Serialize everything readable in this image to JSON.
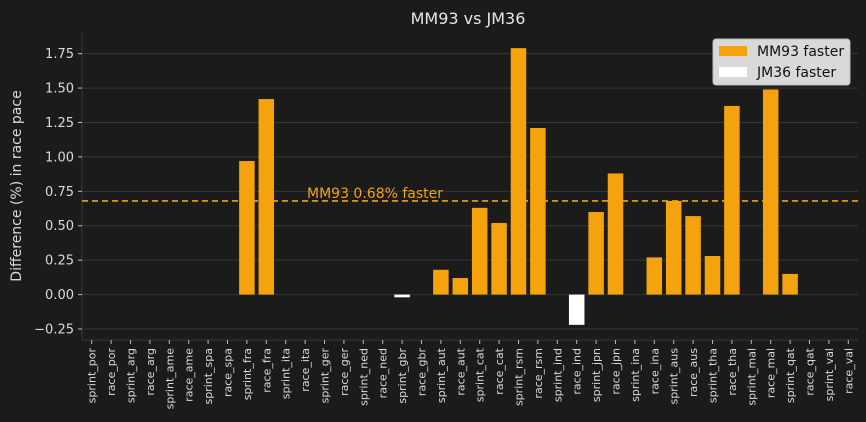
{
  "chart_data": {
    "type": "bar",
    "title": "MM93 vs JM36",
    "xlabel": "",
    "ylabel": "Difference (%) in race pace",
    "ylim": [
      -0.33,
      1.9
    ],
    "yticks": [
      "−0.25",
      "0.00",
      "0.25",
      "0.50",
      "0.75",
      "1.00",
      "1.25",
      "1.50",
      "1.75"
    ],
    "ytick_values": [
      -0.25,
      0,
      0.25,
      0.5,
      0.75,
      1.0,
      1.25,
      1.5,
      1.75
    ],
    "grid": true,
    "legend_position": "top-right",
    "legend": [
      {
        "label": "MM93 faster",
        "color": "#f5a20f"
      },
      {
        "label": "JM36 faster",
        "color": "#ffffff"
      }
    ],
    "colors": {
      "mm93": "#f5a20f",
      "jm36": "#ffffff",
      "background": "#1b1b1b",
      "grid": "#363636"
    },
    "reference_line": {
      "value": 0.68,
      "label": "MM93 0.68% faster",
      "color": "#f5a20f"
    },
    "categories": [
      "sprint_por",
      "race_por",
      "sprint_arg",
      "race_arg",
      "sprint_ame",
      "race_ame",
      "sprint_spa",
      "race_spa",
      "sprint_fra",
      "race_fra",
      "sprint_ita",
      "race_ita",
      "sprint_ger",
      "race_ger",
      "sprint_ned",
      "race_ned",
      "sprint_gbr",
      "race_gbr",
      "sprint_aut",
      "race_aut",
      "sprint_cat",
      "race_cat",
      "sprint_rsm",
      "race_rsm",
      "sprint_ind",
      "race_ind",
      "sprint_jpn",
      "race_jpn",
      "sprint_ina",
      "race_ina",
      "sprint_aus",
      "race_aus",
      "sprint_tha",
      "race_tha",
      "sprint_mal",
      "race_mal",
      "sprint_qat",
      "race_qat",
      "sprint_val",
      "race_val"
    ],
    "values": [
      0,
      0,
      0,
      0,
      0,
      0,
      0,
      0,
      0.97,
      1.42,
      0,
      0,
      0,
      0,
      0,
      0,
      -0.02,
      0,
      0.18,
      0.12,
      0.63,
      0.52,
      1.79,
      1.21,
      0,
      -0.22,
      0.6,
      0.88,
      0,
      0.27,
      0.68,
      0.57,
      0.28,
      1.37,
      0,
      1.49,
      0.15,
      0,
      0,
      0
    ]
  }
}
